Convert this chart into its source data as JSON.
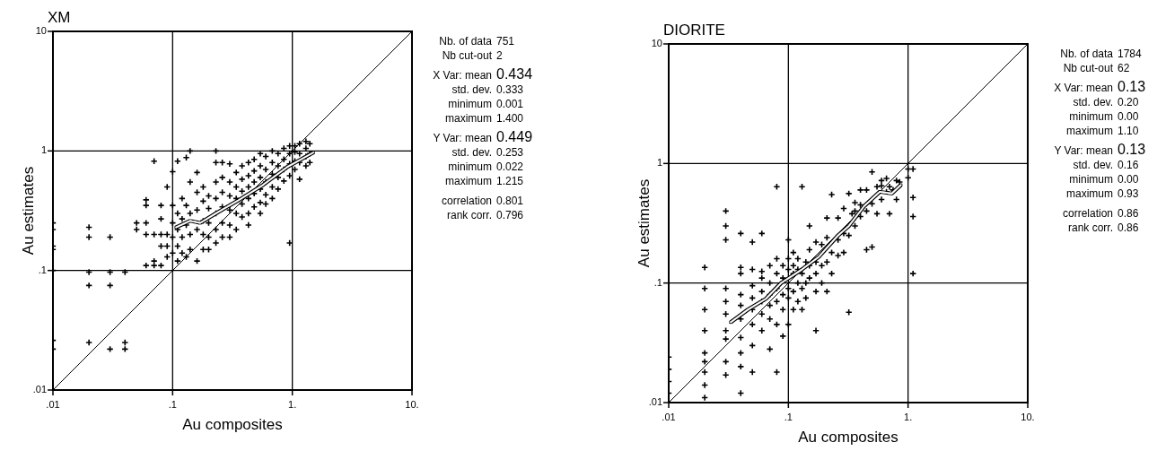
{
  "chart_data": [
    {
      "type": "scatter",
      "title": "XM",
      "xlabel": "Au composites",
      "ylabel": "Au estimates",
      "log": "xy",
      "xlim": [
        0.01,
        10
      ],
      "ylim": [
        0.01,
        10
      ],
      "xticks": [
        {
          "value": 0.01,
          "label": ".01"
        },
        {
          "value": 0.1,
          "label": ".1"
        },
        {
          "value": 1,
          "label": "1."
        },
        {
          "value": 10,
          "label": "10."
        }
      ],
      "yticks": [
        {
          "value": 0.01,
          "label": ".01"
        },
        {
          "value": 0.1,
          "label": ".1"
        },
        {
          "value": 1,
          "label": "1"
        },
        {
          "value": 10,
          "label": "10"
        }
      ],
      "grid": true,
      "marker": "cross",
      "series": [
        {
          "type": "scatter",
          "color": "#000000",
          "x": [
            0.01,
            0.01,
            0.01,
            0.01,
            0.01,
            0.01,
            0.01,
            0.02,
            0.02,
            0.02,
            0.02,
            0.02,
            0.03,
            0.03,
            0.03,
            0.03,
            0.04,
            0.04,
            0.04,
            0.05,
            0.05,
            0.06,
            0.06,
            0.06,
            0.06,
            0.06,
            0.07,
            0.07,
            0.07,
            0.07,
            0.08,
            0.08,
            0.08,
            0.08,
            0.08,
            0.09,
            0.09,
            0.09,
            0.09,
            0.1,
            0.1,
            0.1,
            0.1,
            0.1,
            0.11,
            0.11,
            0.11,
            0.11,
            0.11,
            0.12,
            0.12,
            0.12,
            0.12,
            0.13,
            0.13,
            0.13,
            0.13,
            0.14,
            0.14,
            0.14,
            0.14,
            0.14,
            0.16,
            0.16,
            0.16,
            0.16,
            0.16,
            0.18,
            0.18,
            0.18,
            0.18,
            0.18,
            0.2,
            0.2,
            0.2,
            0.2,
            0.2,
            0.23,
            0.23,
            0.23,
            0.23,
            0.23,
            0.23,
            0.23,
            0.26,
            0.26,
            0.26,
            0.26,
            0.26,
            0.26,
            0.3,
            0.3,
            0.3,
            0.3,
            0.3,
            0.3,
            0.34,
            0.34,
            0.34,
            0.34,
            0.34,
            0.38,
            0.38,
            0.38,
            0.38,
            0.38,
            0.43,
            0.43,
            0.43,
            0.43,
            0.43,
            0.43,
            0.48,
            0.48,
            0.48,
            0.48,
            0.48,
            0.54,
            0.54,
            0.54,
            0.54,
            0.54,
            0.54,
            0.6,
            0.6,
            0.6,
            0.6,
            0.6,
            0.68,
            0.68,
            0.68,
            0.68,
            0.68,
            0.76,
            0.76,
            0.76,
            0.76,
            0.85,
            0.85,
            0.85,
            0.85,
            0.95,
            0.95,
            0.95,
            0.95,
            0.95,
            1.05,
            1.05,
            1.05,
            1.05,
            1.15,
            1.15,
            1.15,
            1.15,
            1.3,
            1.3,
            1.3,
            1.3,
            1.4,
            1.4,
            1.4
          ],
          "values": [
            0.25,
            0.22,
            0.16,
            0.15,
            0.1,
            0.026,
            0.022,
            0.23,
            0.19,
            0.097,
            0.075,
            0.025,
            0.19,
            0.097,
            0.075,
            0.022,
            0.097,
            0.025,
            0.022,
            0.25,
            0.22,
            0.39,
            0.35,
            0.25,
            0.2,
            0.11,
            0.82,
            0.2,
            0.12,
            0.11,
            0.35,
            0.27,
            0.2,
            0.16,
            0.11,
            0.5,
            0.2,
            0.16,
            0.13,
            0.67,
            0.35,
            0.25,
            0.19,
            0.14,
            0.82,
            0.3,
            0.22,
            0.16,
            0.12,
            0.4,
            0.27,
            0.19,
            0.14,
            0.88,
            0.35,
            0.24,
            0.13,
            1.0,
            0.55,
            0.3,
            0.2,
            0.15,
            0.66,
            0.45,
            0.32,
            0.22,
            0.12,
            0.5,
            0.38,
            0.26,
            0.2,
            0.15,
            0.42,
            0.33,
            0.25,
            0.19,
            0.15,
            1.0,
            0.8,
            0.55,
            0.4,
            0.3,
            0.22,
            0.17,
            0.8,
            0.6,
            0.45,
            0.34,
            0.25,
            0.19,
            0.78,
            0.55,
            0.42,
            0.32,
            0.24,
            0.19,
            0.66,
            0.5,
            0.4,
            0.3,
            0.22,
            0.75,
            0.58,
            0.46,
            0.36,
            0.28,
            0.8,
            0.62,
            0.5,
            0.4,
            0.3,
            0.24,
            0.85,
            0.68,
            0.55,
            0.44,
            0.34,
            0.95,
            0.75,
            0.6,
            0.48,
            0.37,
            0.3,
            0.9,
            0.7,
            0.55,
            0.43,
            0.36,
            1.0,
            0.8,
            0.64,
            0.5,
            0.4,
            0.95,
            0.75,
            0.6,
            0.48,
            1.05,
            0.85,
            0.7,
            0.56,
            1.1,
            0.95,
            0.78,
            0.62,
            0.17,
            1.1,
            0.98,
            0.82,
            0.7,
            1.15,
            0.95,
            0.8,
            0.58,
            1.2,
            1.05,
            0.9,
            0.75,
            1.15,
            0.95,
            0.8
          ]
        },
        {
          "type": "line",
          "marker": "none",
          "color": "#ffffff",
          "x": [
            0.107,
            0.14,
            0.17,
            0.23,
            0.36,
            0.57,
            0.9,
            1.5
          ],
          "values": [
            0.23,
            0.26,
            0.25,
            0.3,
            0.39,
            0.52,
            0.73,
            0.97
          ]
        },
        {
          "type": "line",
          "marker": "none",
          "color": "#000000",
          "x": [
            0.01,
            10
          ],
          "values": [
            0.01,
            10
          ]
        }
      ],
      "annotations": [
        "Nb. of data 751",
        "Nb cut-out 2",
        "X Var: mean 0.434",
        "std. dev. 0.333",
        "minimum 0.001",
        "maximum 1.400",
        "Y Var: mean 0.449",
        "std. dev. 0.253",
        "minimum 0.022",
        "maximum 1.215",
        "correlation 0.801",
        "rank corr. 0.796"
      ]
    },
    {
      "type": "scatter",
      "title": "DIORITE",
      "xlabel": "Au composites",
      "ylabel": "Au estimates",
      "log": "xy",
      "xlim": [
        0.01,
        10
      ],
      "ylim": [
        0.01,
        10
      ],
      "xticks": [
        {
          "value": 0.01,
          "label": ".01"
        },
        {
          "value": 0.1,
          "label": ".1"
        },
        {
          "value": 1,
          "label": "1."
        },
        {
          "value": 10,
          "label": "10."
        }
      ],
      "yticks": [
        {
          "value": 0.01,
          "label": ".01"
        },
        {
          "value": 0.1,
          "label": ".1"
        },
        {
          "value": 1,
          "label": "1"
        },
        {
          "value": 10,
          "label": "10"
        }
      ],
      "grid": true,
      "marker": "cross",
      "series": [
        {
          "type": "scatter",
          "color": "#000000",
          "x": [
            0.01,
            0.01,
            0.01,
            0.01,
            0.01,
            0.02,
            0.02,
            0.02,
            0.02,
            0.02,
            0.02,
            0.02,
            0.02,
            0.02,
            0.03,
            0.03,
            0.03,
            0.03,
            0.03,
            0.03,
            0.03,
            0.03,
            0.03,
            0.03,
            0.04,
            0.04,
            0.04,
            0.04,
            0.04,
            0.04,
            0.04,
            0.04,
            0.04,
            0.04,
            0.05,
            0.05,
            0.05,
            0.05,
            0.05,
            0.05,
            0.05,
            0.05,
            0.06,
            0.06,
            0.06,
            0.06,
            0.06,
            0.06,
            0.06,
            0.07,
            0.07,
            0.07,
            0.07,
            0.07,
            0.07,
            0.08,
            0.08,
            0.08,
            0.08,
            0.08,
            0.08,
            0.08,
            0.09,
            0.09,
            0.09,
            0.09,
            0.09,
            0.1,
            0.1,
            0.1,
            0.1,
            0.1,
            0.1,
            0.11,
            0.11,
            0.11,
            0.11,
            0.11,
            0.12,
            0.12,
            0.12,
            0.12,
            0.13,
            0.13,
            0.13,
            0.13,
            0.14,
            0.14,
            0.14,
            0.15,
            0.15,
            0.15,
            0.15,
            0.17,
            0.17,
            0.17,
            0.17,
            0.17,
            0.19,
            0.19,
            0.19,
            0.21,
            0.21,
            0.21,
            0.21,
            0.23,
            0.23,
            0.23,
            0.26,
            0.26,
            0.26,
            0.29,
            0.29,
            0.29,
            0.32,
            0.32,
            0.32,
            0.34,
            0.36,
            0.36,
            0.36,
            0.4,
            0.4,
            0.4,
            0.45,
            0.45,
            0.45,
            0.5,
            0.5,
            0.5,
            0.55,
            0.55,
            0.6,
            0.6,
            0.6,
            0.66,
            0.66,
            0.7,
            0.7,
            0.75,
            0.8,
            0.8,
            0.85,
            1.0,
            1.0,
            1.1,
            1.1,
            1.1,
            1.1
          ],
          "values": [
            0.01,
            0.012,
            0.015,
            0.019,
            0.024,
            0.011,
            0.014,
            0.018,
            0.022,
            0.026,
            0.04,
            0.06,
            0.09,
            0.135,
            0.017,
            0.022,
            0.034,
            0.04,
            0.055,
            0.07,
            0.09,
            0.23,
            0.3,
            0.4,
            0.012,
            0.02,
            0.026,
            0.035,
            0.05,
            0.065,
            0.08,
            0.12,
            0.135,
            0.26,
            0.018,
            0.03,
            0.045,
            0.06,
            0.075,
            0.095,
            0.13,
            0.22,
            0.04,
            0.055,
            0.07,
            0.085,
            0.11,
            0.125,
            0.26,
            0.028,
            0.05,
            0.065,
            0.08,
            0.1,
            0.14,
            0.018,
            0.045,
            0.07,
            0.09,
            0.12,
            0.16,
            0.64,
            0.036,
            0.06,
            0.08,
            0.11,
            0.14,
            0.045,
            0.075,
            0.09,
            0.13,
            0.16,
            0.23,
            0.06,
            0.085,
            0.12,
            0.14,
            0.18,
            0.07,
            0.1,
            0.13,
            0.16,
            0.06,
            0.09,
            0.12,
            0.64,
            0.075,
            0.1,
            0.15,
            0.11,
            0.14,
            0.19,
            0.3,
            0.04,
            0.085,
            0.12,
            0.15,
            0.22,
            0.1,
            0.14,
            0.21,
            0.085,
            0.15,
            0.24,
            0.35,
            0.12,
            0.18,
            0.55,
            0.17,
            0.23,
            0.35,
            0.18,
            0.26,
            0.42,
            0.057,
            0.25,
            0.56,
            0.38,
            0.3,
            0.4,
            0.47,
            0.36,
            0.45,
            0.6,
            0.19,
            0.4,
            0.6,
            0.2,
            0.46,
            0.85,
            0.38,
            0.64,
            0.5,
            0.65,
            0.72,
            0.58,
            0.75,
            0.38,
            0.64,
            0.6,
            0.5,
            0.72,
            0.7,
            0.76,
            0.9,
            0.12,
            0.36,
            0.52,
            0.9
          ]
        },
        {
          "type": "line",
          "marker": "none",
          "color": "#ffffff",
          "x": [
            0.033,
            0.046,
            0.065,
            0.087,
            0.13,
            0.18,
            0.26,
            0.32,
            0.43,
            0.58,
            0.73,
            0.87
          ],
          "values": [
            0.047,
            0.06,
            0.074,
            0.1,
            0.13,
            0.166,
            0.25,
            0.3,
            0.44,
            0.58,
            0.56,
            0.66
          ]
        },
        {
          "type": "line",
          "marker": "none",
          "color": "#000000",
          "x": [
            0.01,
            10
          ],
          "values": [
            0.01,
            10
          ]
        }
      ],
      "annotations": [
        "Nb. of data 1784",
        "Nb cut-out 62",
        "X Var: mean 0.13",
        "std. dev. 0.20",
        "minimum 0.00",
        "maximum 1.10",
        "Y Var: mean 0.13",
        "std. dev. 0.16",
        "minimum 0.00",
        "maximum 0.93",
        "correlation 0.86",
        "rank corr. 0.86"
      ]
    }
  ]
}
